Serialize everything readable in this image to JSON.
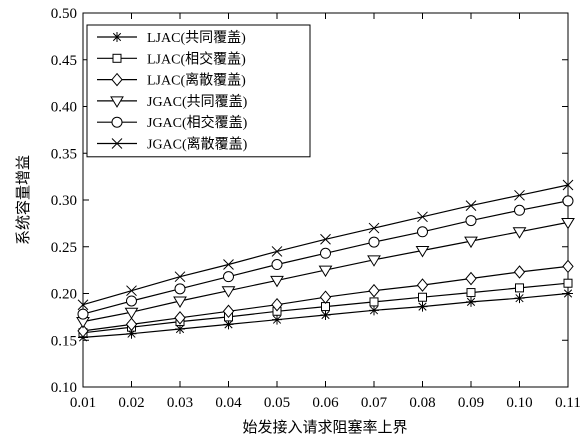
{
  "chart_data": {
    "type": "line",
    "xlabel": "始发接入请求阻塞率上界",
    "ylabel": "系统容量增益",
    "x": [
      0.01,
      0.02,
      0.03,
      0.04,
      0.05,
      0.06,
      0.07,
      0.08,
      0.09,
      0.1,
      0.11
    ],
    "x_ticks": [
      "0.01",
      "0.02",
      "0.03",
      "0.04",
      "0.05",
      "0.06",
      "0.07",
      "0.08",
      "0.09",
      "0.10",
      "0.11"
    ],
    "xlim": [
      0.01,
      0.11
    ],
    "ylim": [
      0.1,
      0.5
    ],
    "y_ticks": [
      "0.10",
      "0.15",
      "0.20",
      "0.25",
      "0.30",
      "0.35",
      "0.40",
      "0.45",
      "0.50"
    ],
    "legend_position": "top-left",
    "grid": false,
    "series": [
      {
        "name": "LJAC(共同覆盖)",
        "marker": "star",
        "values": [
          0.153,
          0.157,
          0.162,
          0.167,
          0.172,
          0.177,
          0.182,
          0.186,
          0.191,
          0.195,
          0.2
        ]
      },
      {
        "name": "LJAC(相交覆盖)",
        "marker": "square",
        "values": [
          0.158,
          0.164,
          0.17,
          0.175,
          0.181,
          0.186,
          0.191,
          0.196,
          0.201,
          0.206,
          0.211
        ]
      },
      {
        "name": "LJAC(离散覆盖)",
        "marker": "diamond",
        "values": [
          0.16,
          0.167,
          0.174,
          0.181,
          0.188,
          0.196,
          0.203,
          0.209,
          0.216,
          0.223,
          0.229
        ]
      },
      {
        "name": "JGAC(共同覆盖)",
        "marker": "triangle-down",
        "values": [
          0.17,
          0.18,
          0.192,
          0.203,
          0.214,
          0.225,
          0.236,
          0.246,
          0.256,
          0.266,
          0.276
        ]
      },
      {
        "name": "JGAC(相交覆盖)",
        "marker": "circle",
        "values": [
          0.178,
          0.192,
          0.205,
          0.218,
          0.231,
          0.243,
          0.255,
          0.266,
          0.278,
          0.289,
          0.299
        ]
      },
      {
        "name": "JGAC(离散覆盖)",
        "marker": "x",
        "values": [
          0.188,
          0.203,
          0.218,
          0.231,
          0.245,
          0.258,
          0.27,
          0.282,
          0.294,
          0.305,
          0.316
        ]
      }
    ]
  }
}
